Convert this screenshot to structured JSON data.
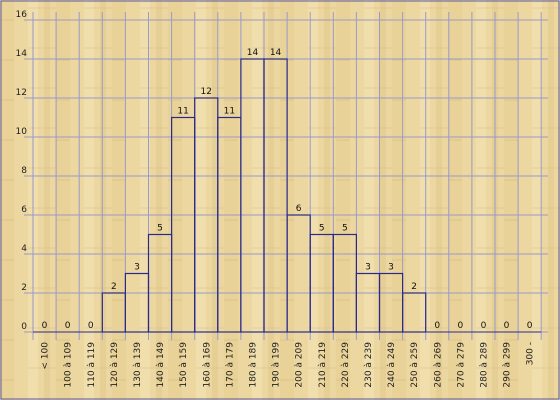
{
  "chart_data": {
    "type": "bar",
    "title": "",
    "xlabel": "",
    "ylabel": "",
    "ylim": [
      0,
      16
    ],
    "yticks": [
      0,
      2,
      4,
      6,
      8,
      10,
      12,
      14,
      16
    ],
    "grid": true,
    "categories": [
      "< 100",
      "100 à 109",
      "110 à 119",
      "120 à 129",
      "130 à 139",
      "140 à 149",
      "150 à 159",
      "160 à 169",
      "170 à 179",
      "180 à 189",
      "190 à 199",
      "200 à 209",
      "210 à 219",
      "220 à 229",
      "230 à 239",
      "240 à 249",
      "250 à 259",
      "260 à 269",
      "270 à 279",
      "280 à 289",
      "290 à 299",
      "300 -"
    ],
    "values": [
      0,
      0,
      0,
      2,
      3,
      5,
      11,
      12,
      11,
      14,
      14,
      6,
      5,
      5,
      3,
      3,
      2,
      0,
      0,
      0,
      0,
      0
    ],
    "colors": {
      "background": "#ecd7a0",
      "bar_stroke": "#2a2a8c",
      "grid": "#9a9ac8",
      "frame": "#5a5aa0"
    }
  }
}
